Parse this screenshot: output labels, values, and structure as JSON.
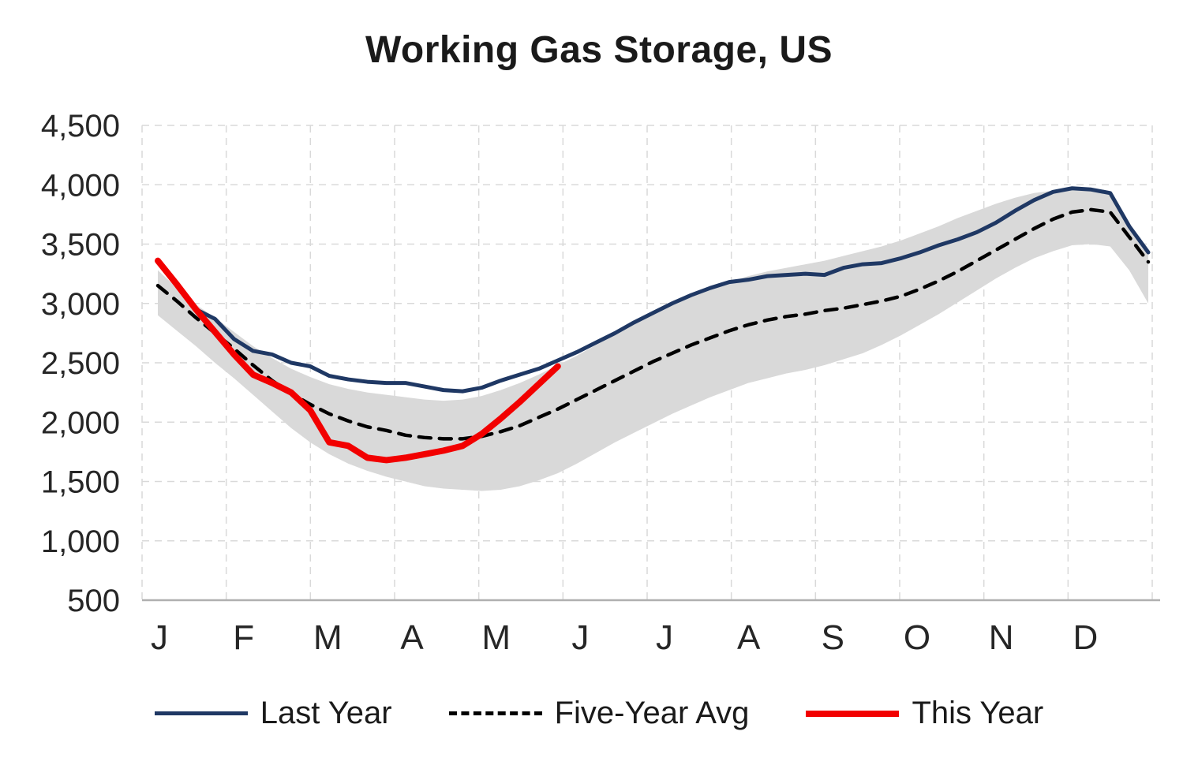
{
  "chart_data": {
    "type": "line",
    "title": "Working Gas Storage, US",
    "xlabel": "",
    "ylabel": "",
    "ylim": [
      500,
      4500
    ],
    "yticks": [
      500,
      1000,
      1500,
      2000,
      2500,
      3000,
      3500,
      4000,
      4500
    ],
    "ytick_labels": [
      "500",
      "1,000",
      "1,500",
      "2,000",
      "2,500",
      "3,000",
      "3,500",
      "4,000",
      "4,500"
    ],
    "x_labels": [
      "J",
      "F",
      "M",
      "A",
      "M",
      "J",
      "J",
      "A",
      "S",
      "O",
      "N",
      "D"
    ],
    "grid": "dashed, horizontal and vertical",
    "grid_color": "#d9d9d9",
    "axis_line_color": "#b0b0b0",
    "tick_label_color": "#262626",
    "legend_position": "bottom",
    "band": {
      "name": "five-year range",
      "color": "#d9d9d9",
      "upper": [
        3280,
        3130,
        2990,
        2880,
        2760,
        2640,
        2540,
        2450,
        2380,
        2320,
        2280,
        2250,
        2230,
        2210,
        2190,
        2180,
        2190,
        2220,
        2270,
        2330,
        2400,
        2480,
        2560,
        2650,
        2740,
        2830,
        2910,
        2990,
        3060,
        3120,
        3180,
        3230,
        3270,
        3300,
        3330,
        3360,
        3400,
        3440,
        3480,
        3530,
        3590,
        3650,
        3720,
        3780,
        3840,
        3890,
        3930,
        3950,
        3960,
        3950,
        3920,
        3640,
        3420
      ],
      "lower": [
        2900,
        2770,
        2640,
        2500,
        2370,
        2230,
        2090,
        1950,
        1830,
        1730,
        1650,
        1590,
        1540,
        1500,
        1460,
        1440,
        1430,
        1420,
        1430,
        1460,
        1510,
        1570,
        1650,
        1740,
        1830,
        1910,
        1990,
        2070,
        2140,
        2210,
        2270,
        2330,
        2370,
        2410,
        2440,
        2480,
        2530,
        2580,
        2650,
        2730,
        2820,
        2910,
        3010,
        3110,
        3210,
        3300,
        3380,
        3440,
        3490,
        3500,
        3480,
        3280,
        3000
      ]
    },
    "series": [
      {
        "name": "Last Year",
        "color": "#1f3864",
        "style": "solid",
        "width": 5,
        "values": [
          3350,
          3150,
          2950,
          2870,
          2700,
          2600,
          2570,
          2500,
          2470,
          2390,
          2360,
          2340,
          2330,
          2330,
          2300,
          2270,
          2260,
          2290,
          2350,
          2400,
          2450,
          2520,
          2590,
          2670,
          2750,
          2840,
          2920,
          3000,
          3070,
          3130,
          3180,
          3200,
          3230,
          3240,
          3250,
          3240,
          3300,
          3330,
          3340,
          3380,
          3430,
          3490,
          3540,
          3600,
          3680,
          3780,
          3870,
          3940,
          3970,
          3960,
          3930,
          3650,
          3430
        ]
      },
      {
        "name": "Five-Year Avg",
        "color": "#000000",
        "style": "dashed",
        "width": 4.5,
        "values": [
          3150,
          3020,
          2880,
          2750,
          2620,
          2480,
          2350,
          2240,
          2150,
          2070,
          2010,
          1960,
          1930,
          1890,
          1870,
          1860,
          1860,
          1880,
          1920,
          1970,
          2040,
          2110,
          2190,
          2270,
          2350,
          2430,
          2510,
          2580,
          2650,
          2710,
          2770,
          2820,
          2860,
          2890,
          2910,
          2940,
          2960,
          2990,
          3020,
          3060,
          3120,
          3190,
          3270,
          3360,
          3450,
          3540,
          3630,
          3710,
          3770,
          3790,
          3770,
          3560,
          3350
        ]
      },
      {
        "name": "This Year",
        "color": "#f20000",
        "style": "solid",
        "width": 8,
        "values": [
          3360,
          3160,
          2950,
          2760,
          2570,
          2400,
          2330,
          2250,
          2100,
          1830,
          1800,
          1700,
          1680,
          1700,
          1730,
          1760,
          1800,
          1900,
          2030,
          2170,
          2320,
          2470
        ]
      }
    ]
  }
}
